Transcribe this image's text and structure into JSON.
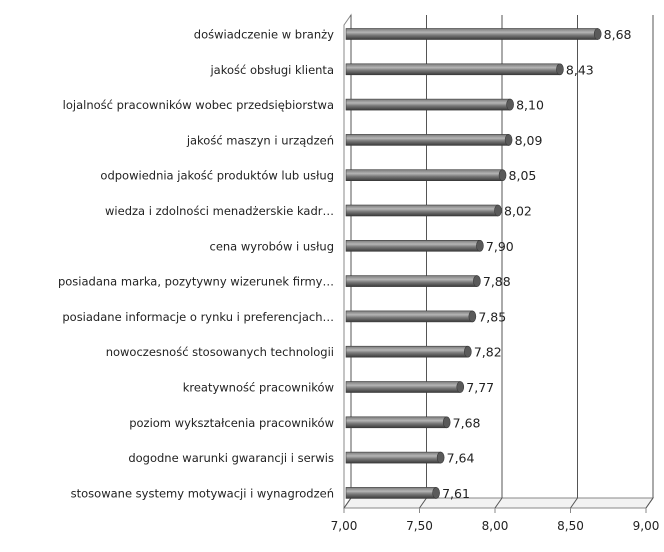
{
  "chart_data": {
    "type": "bar",
    "orientation": "horizontal",
    "style": "3d-cylinder",
    "categories": [
      "doświadczenie w branży",
      "jakość obsługi klienta",
      "lojalność pracowników wobec przedsiębiorstwa",
      "jakość maszyn i urządzeń",
      "odpowiednia jakość produktów lub usług",
      "wiedza i zdolności menadżerskie kadr…",
      "cena wyrobów i usług",
      "posiadana marka, pozytywny wizerunek firmy…",
      "posiadane informacje o rynku i preferencjach…",
      "nowoczesność stosowanych technologii",
      "kreatywność pracowników",
      "poziom wykształcenia pracowników",
      "dogodne warunki gwarancji i serwis",
      "stosowane systemy motywacji i wynagrodzeń"
    ],
    "values": [
      8.68,
      8.43,
      8.1,
      8.09,
      8.05,
      8.02,
      7.9,
      7.88,
      7.85,
      7.82,
      7.77,
      7.68,
      7.64,
      7.61
    ],
    "value_labels": [
      "8,68",
      "8,43",
      "8,10",
      "8,09",
      "8,05",
      "8,02",
      "7,90",
      "7,88",
      "7,85",
      "7,82",
      "7,77",
      "7,68",
      "7,64",
      "7,61"
    ],
    "xlim": [
      7.0,
      9.0
    ],
    "ticks": [
      7.0,
      7.5,
      8.0,
      8.5,
      9.0
    ],
    "tick_labels": [
      "7,00",
      "7,50",
      "8,00",
      "8,50",
      "9,00"
    ],
    "grid": true,
    "colors": {
      "bar_dark": "#3a3a3a",
      "bar_mid": "#7a7a7a",
      "bar_light": "#b5b5b5",
      "grid": "#555555",
      "axis": "#888888"
    }
  }
}
